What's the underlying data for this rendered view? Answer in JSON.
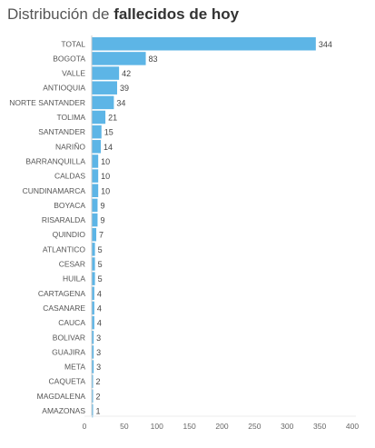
{
  "title": {
    "prefix": "Distribución de",
    "bold": "fallecidos de hoy"
  },
  "colors": {
    "bar": "#5db5e6",
    "axis": "#cccccc"
  },
  "chart_data": {
    "type": "bar",
    "orientation": "horizontal",
    "title": "Distribución de fallecidos de hoy",
    "categories": [
      "TOTAL",
      "BOGOTA",
      "VALLE",
      "ANTIOQUIA",
      "NORTE SANTANDER",
      "TOLIMA",
      "SANTANDER",
      "NARIÑO",
      "BARRANQUILLA",
      "CALDAS",
      "CUNDINAMARCA",
      "BOYACA",
      "RISARALDA",
      "QUINDIO",
      "ATLANTICO",
      "CESAR",
      "HUILA",
      "CARTAGENA",
      "CASANARE",
      "CAUCA",
      "BOLIVAR",
      "GUAJIRA",
      "META",
      "CAQUETA",
      "MAGDALENA",
      "AMAZONAS"
    ],
    "values": [
      344,
      83,
      42,
      39,
      34,
      21,
      15,
      14,
      10,
      10,
      10,
      9,
      9,
      7,
      5,
      5,
      5,
      4,
      4,
      4,
      3,
      3,
      3,
      2,
      2,
      1
    ],
    "xlim": [
      0,
      400
    ],
    "xticks": [
      0,
      50,
      100,
      150,
      200,
      250,
      300,
      350,
      400
    ],
    "grid": false,
    "legend": false
  }
}
